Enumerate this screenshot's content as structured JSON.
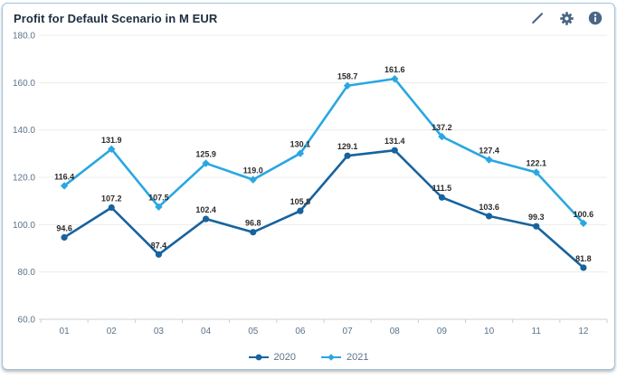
{
  "widget": {
    "title": "Profit for Default Scenario in M EUR",
    "toolbar_icons": [
      "edit-pencil-icon",
      "gear-icon",
      "info-icon"
    ]
  },
  "colors": {
    "series_2020": "#17639e",
    "series_2021": "#29a7e1",
    "title_text": "#1d2d3e",
    "axis_text": "#5b738b",
    "gridline": "#ececec",
    "axis_line": "#cfcfcf",
    "data_label": "#2b2b2b",
    "card_border": "#9ec3e0",
    "icon": "#4a6685"
  },
  "chart_data": {
    "type": "line",
    "title": "Profit for Default Scenario in M EUR",
    "xlabel": "",
    "ylabel": "",
    "categories": [
      "01",
      "02",
      "03",
      "04",
      "05",
      "06",
      "07",
      "08",
      "09",
      "10",
      "11",
      "12"
    ],
    "series": [
      {
        "name": "2020",
        "color": "#17639e",
        "marker": "circle",
        "values": [
          94.6,
          107.2,
          87.4,
          102.4,
          96.8,
          105.8,
          129.1,
          131.4,
          111.5,
          103.6,
          99.3,
          81.8
        ]
      },
      {
        "name": "2021",
        "color": "#29a7e1",
        "marker": "diamond",
        "values": [
          116.4,
          131.9,
          107.5,
          125.9,
          119.0,
          130.1,
          158.7,
          161.6,
          137.2,
          127.4,
          122.1,
          100.6
        ]
      }
    ],
    "ylim": [
      60,
      180
    ],
    "ytick_step": 20,
    "ytick_labels": [
      "60.0",
      "80.0",
      "100.0",
      "120.0",
      "140.0",
      "160.0",
      "180.0"
    ],
    "grid": true,
    "legend_position": "bottom",
    "data_labels_shown": true
  }
}
